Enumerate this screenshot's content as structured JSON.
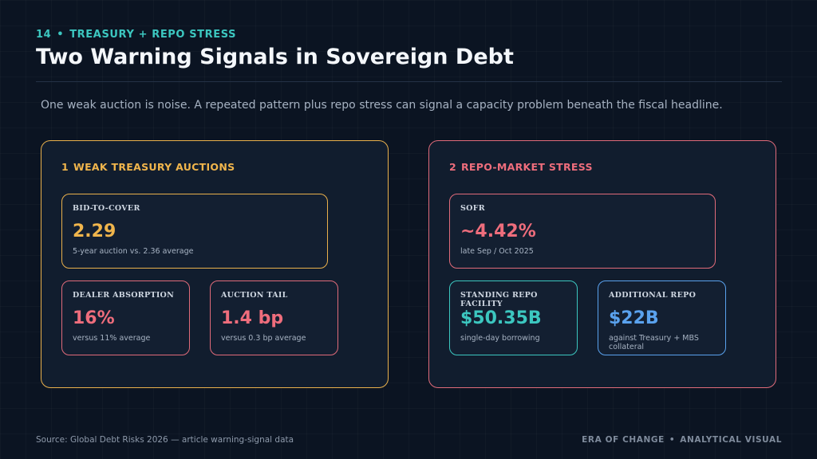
{
  "header": {
    "slide_number": "14",
    "separator": "•",
    "kicker": "TREASURY + REPO STRESS",
    "title": "Two Warning Signals in Sovereign Debt",
    "lede": "One weak auction is noise. A repeated pattern plus repo stress can signal a capacity problem beneath the fiscal headline."
  },
  "panels": [
    {
      "number": "1",
      "heading": "WEAK TREASURY AUCTIONS",
      "border_color": "#e9b04c",
      "cards": [
        {
          "label": "BID-TO-COVER",
          "value": "2.29",
          "sub": "5-year auction vs. 2.36 average",
          "color": "#f0b54c"
        },
        {
          "label": "DEALER ABSORPTION",
          "value": "16%",
          "sub": "versus 11% average",
          "color": "#ee6d7c"
        },
        {
          "label": "AUCTION TAIL",
          "value": "1.4 bp",
          "sub": "versus 0.3 bp average",
          "color": "#ee6d7c"
        }
      ]
    },
    {
      "number": "2",
      "heading": "REPO-MARKET STRESS",
      "border_color": "#e06b7a",
      "cards": [
        {
          "label": "SOFR",
          "value": "~4.42%",
          "sub": "late Sep / Oct 2025",
          "color": "#ee6d7c"
        },
        {
          "label": "STANDING REPO FACILITY",
          "value": "$50.35B",
          "sub": "single-day borrowing",
          "color": "#3cc7c0"
        },
        {
          "label": "ADDITIONAL REPO",
          "value": "$22B",
          "sub": "against Treasury + MBS collateral",
          "color": "#5aa2ee"
        }
      ]
    }
  ],
  "footer": {
    "source": "Source: Global Debt Risks 2026 — article warning-signal data",
    "brand": "ERA OF CHANGE",
    "separator": "•",
    "tag": "ANALYTICAL VISUAL"
  }
}
